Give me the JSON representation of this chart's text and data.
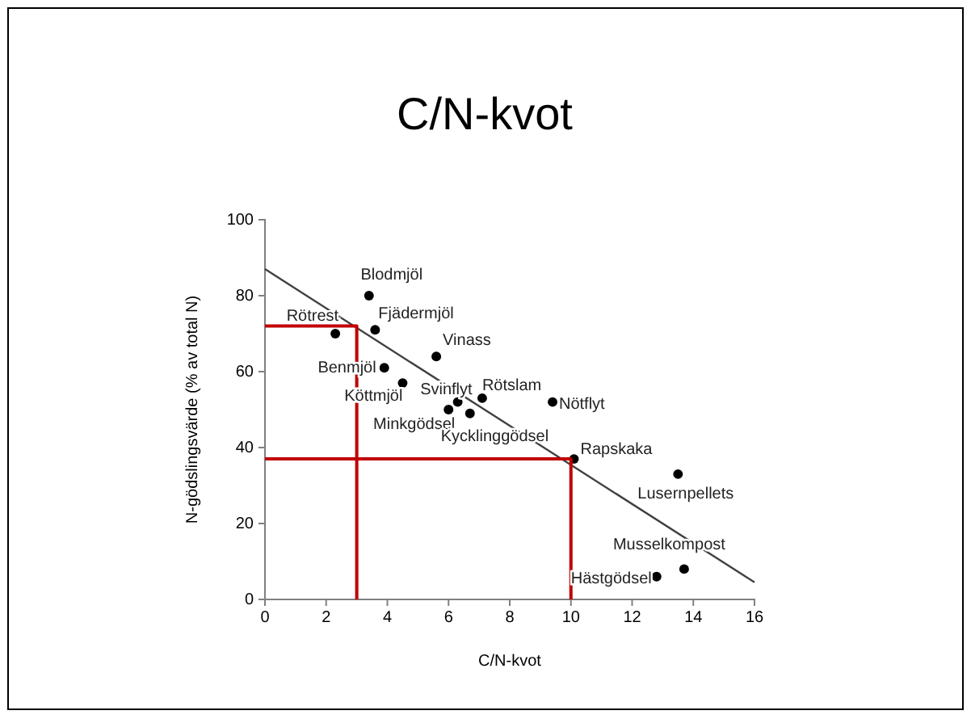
{
  "chart_data": {
    "type": "scatter",
    "title": "C/N-kvot",
    "xlabel": "C/N-kvot",
    "ylabel": "N-gödslingsvärde (% av total N)",
    "xlim": [
      0,
      16
    ],
    "xticks": [
      0,
      2,
      4,
      6,
      8,
      10,
      12,
      14,
      16
    ],
    "ylim": [
      0,
      100
    ],
    "yticks": [
      0,
      20,
      40,
      60,
      80,
      100
    ],
    "grid": false,
    "marker": "circle",
    "series": [
      {
        "color": "#000000",
        "x": [
          3.4,
          3.6,
          2.3,
          5.6,
          3.9,
          4.5,
          6.3,
          7.1,
          6.0,
          6.7,
          9.4,
          10.1,
          13.5,
          13.7,
          12.8
        ],
        "values": [
          80,
          71,
          70,
          64,
          61,
          57,
          52,
          53,
          50,
          49,
          52,
          37,
          33,
          8,
          6
        ]
      },
      {
        "type": "line",
        "color": "#404040",
        "marker": "none",
        "line_style": "solid",
        "x": [
          0,
          16
        ],
        "values": [
          87,
          4.5
        ]
      },
      {
        "type": "line",
        "color": "#c00000",
        "marker": "none",
        "line_style": "solid",
        "x": [
          0,
          3,
          3
        ],
        "values": [
          72,
          72,
          0
        ]
      },
      {
        "type": "line",
        "color": "#c00000",
        "marker": "none",
        "line_style": "solid",
        "x": [
          0,
          10,
          10
        ],
        "values": [
          37,
          37,
          0
        ]
      }
    ],
    "annotations": [
      {
        "text": "Blodmjöl",
        "x": 3.4,
        "y": 80
      },
      {
        "text": "Fjädermjöl",
        "x": 3.6,
        "y": 71
      },
      {
        "text": "Rötrest",
        "x": 2.3,
        "y": 70
      },
      {
        "text": "Vinass",
        "x": 5.6,
        "y": 64
      },
      {
        "text": "Benmjöl",
        "x": 3.9,
        "y": 61
      },
      {
        "text": "Köttmjöl",
        "x": 4.5,
        "y": 57
      },
      {
        "text": "Svinflyt",
        "x": 6.3,
        "y": 52
      },
      {
        "text": "Rötslam",
        "x": 7.1,
        "y": 53
      },
      {
        "text": "Minkgödsel",
        "x": 6.0,
        "y": 50
      },
      {
        "text": "Kycklinggödsel",
        "x": 6.7,
        "y": 49
      },
      {
        "text": "Nötflyt",
        "x": 9.4,
        "y": 52
      },
      {
        "text": "Rapskaka",
        "x": 10.1,
        "y": 37
      },
      {
        "text": "Lusernpellets",
        "x": 13.5,
        "y": 33
      },
      {
        "text": "Musselkompost",
        "x": 13.7,
        "y": 8
      },
      {
        "text": "Hästgödsel",
        "x": 12.8,
        "y": 6
      }
    ]
  }
}
